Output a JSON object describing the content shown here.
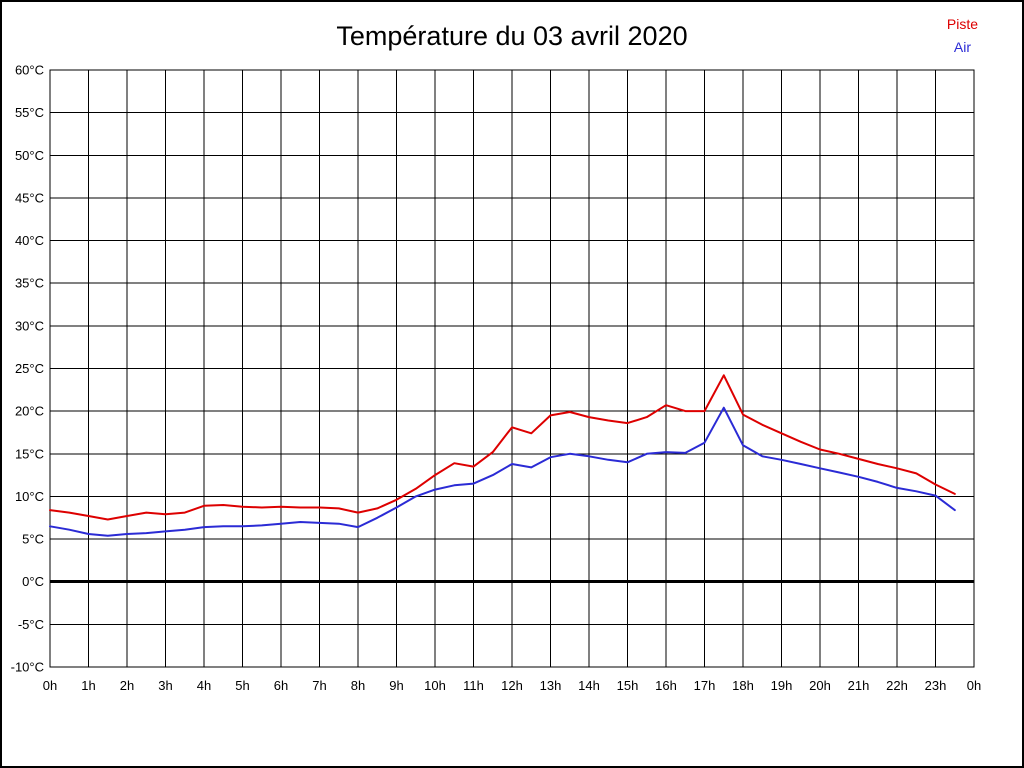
{
  "title": "Température du 03 avril 2020",
  "legend": {
    "piste": {
      "label": "Piste",
      "color": "#dd0000"
    },
    "air": {
      "label": "Air",
      "color": "#2b2bd5"
    }
  },
  "chart_data": {
    "type": "line",
    "title": "Température du 03 avril 2020",
    "xlabel": "",
    "ylabel": "",
    "x_unit": "hours",
    "xlim": [
      0,
      24
    ],
    "ylim": [
      -10,
      60
    ],
    "y_tick_step": 5,
    "grid": true,
    "emphasized_y_line": 0,
    "legend_position": "top-right",
    "x_tick_labels": [
      "0h",
      "1h",
      "2h",
      "3h",
      "4h",
      "5h",
      "6h",
      "7h",
      "8h",
      "9h",
      "10h",
      "11h",
      "12h",
      "13h",
      "14h",
      "15h",
      "16h",
      "17h",
      "18h",
      "19h",
      "20h",
      "21h",
      "22h",
      "23h",
      "0h"
    ],
    "y_tick_labels": [
      "60°C",
      "55°C",
      "50°C",
      "45°C",
      "40°C",
      "35°C",
      "30°C",
      "25°C",
      "20°C",
      "15°C",
      "10°C",
      "5°C",
      "0°C",
      "-5°C",
      "-10°C"
    ],
    "x": [
      0,
      0.5,
      1,
      1.5,
      2,
      2.5,
      3,
      3.5,
      4,
      4.5,
      5,
      5.5,
      6,
      6.5,
      7,
      7.5,
      8,
      8.5,
      9,
      9.5,
      10,
      10.5,
      11,
      11.5,
      12,
      12.5,
      13,
      13.5,
      14,
      14.5,
      15,
      15.5,
      16,
      16.5,
      17,
      17.5,
      18,
      18.5,
      19,
      19.5,
      20,
      20.5,
      21,
      21.5,
      22,
      22.5,
      23,
      23.5
    ],
    "series": [
      {
        "name": "Piste",
        "color": "#dd0000",
        "values": [
          8.4,
          8.1,
          7.7,
          7.3,
          7.7,
          8.1,
          7.9,
          8.1,
          8.9,
          9.0,
          8.8,
          8.7,
          8.8,
          8.7,
          8.7,
          8.6,
          8.1,
          8.6,
          9.6,
          10.9,
          12.5,
          13.9,
          13.5,
          15.2,
          18.1,
          17.4,
          19.5,
          19.9,
          19.3,
          18.9,
          18.6,
          19.3,
          20.7,
          20.0,
          20.0,
          24.2,
          19.6,
          18.4,
          17.4,
          16.4,
          15.5,
          15.0,
          14.4,
          13.8,
          13.3,
          12.7,
          11.4,
          10.3
        ]
      },
      {
        "name": "Air",
        "color": "#2b2bd5",
        "values": [
          6.5,
          6.1,
          5.6,
          5.4,
          5.6,
          5.7,
          5.9,
          6.1,
          6.4,
          6.5,
          6.5,
          6.6,
          6.8,
          7.0,
          6.9,
          6.8,
          6.4,
          7.5,
          8.7,
          10.0,
          10.8,
          11.3,
          11.5,
          12.5,
          13.8,
          13.4,
          14.6,
          15.0,
          14.7,
          14.3,
          14.0,
          15.0,
          15.2,
          15.1,
          16.3,
          20.4,
          16.0,
          14.7,
          14.3,
          13.8,
          13.3,
          12.8,
          12.3,
          11.7,
          11.0,
          10.6,
          10.1,
          8.4
        ]
      }
    ]
  }
}
